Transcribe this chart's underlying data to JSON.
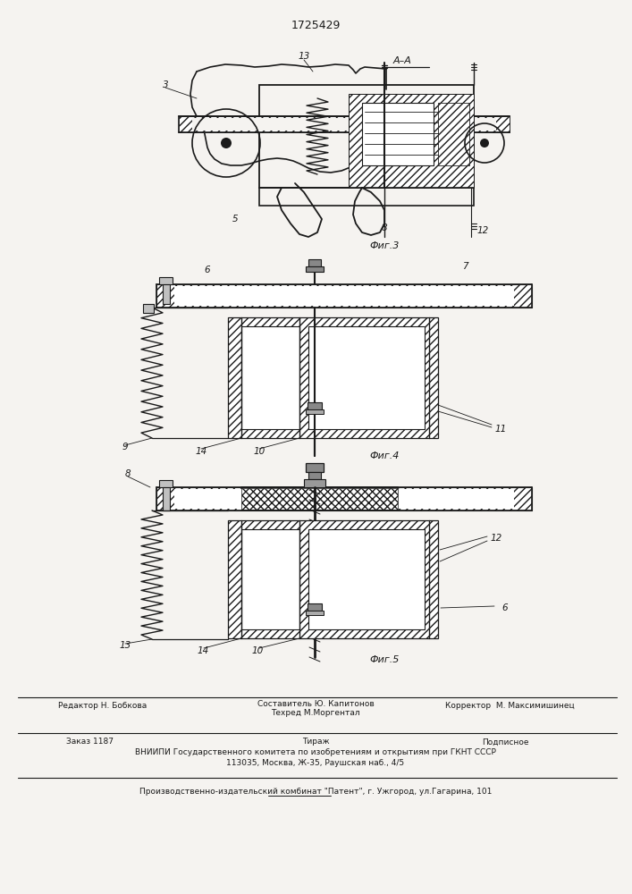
{
  "patent_number": "1725429",
  "bg": "#f5f3f0",
  "lc": "#1a1a1a",
  "footer_editor": "Редактор Н. Бобкова",
  "footer_composer": "Составитель Ю. Капитонов",
  "footer_corrector": "Корректор  М. Максимишинец",
  "footer_tech": "Техред М.Моргентал",
  "footer_order": "Заказ 1187",
  "footer_tirazh": "Тираж",
  "footer_podp": "Подписное",
  "footer_vniiipi": "ВНИИПИ Государственного комитета по изобретениям и открытиям при ГКНТ СССР",
  "footer_address": "113035, Москва, Ж-35, Раушская наб., 4/5",
  "footer_publisher": "Производственно-издательский комбинат \"Патент\", г. Ужгород, ул.Гагарина, 101"
}
